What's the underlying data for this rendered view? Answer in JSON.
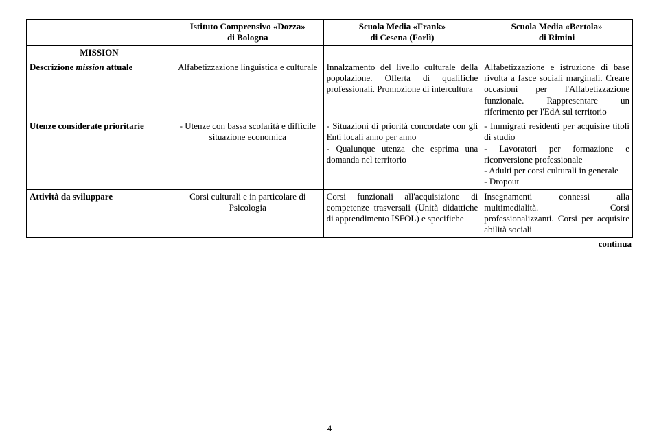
{
  "header": {
    "col1": "Istituto Comprensivo «Dozza»\ndi Bologna",
    "col2": "Scuola Media «Frank»\ndi Cesena (Forlì)",
    "col3": "Scuola Media «Bertola»\ndi Rimini"
  },
  "section_label": "MISSION",
  "rows": [
    {
      "label_html": "Descrizione <span class=\"italic\">mission</span> attuale",
      "c1": "Alfabetizzazione linguistica e culturale",
      "c2": "Innalzamento del livello culturale della popolazione. Offerta di qualifiche professionali. Promozione di intercultura",
      "c3": "Alfabetizzazione e istruzione di base rivolta a fasce sociali marginali. Creare occasioni per l'Alfabetizzazione funzionale. Rappresentare un riferimento per l'EdA sul territorio"
    },
    {
      "label": "Utenze considerate prioritarie",
      "c1": "- Utenze con bassa scolarità e difficile situazione economica",
      "c2": "- Situazioni di priorità concordate con gli Enti locali anno per anno\n- Qualunque utenza che esprima una domanda nel territorio",
      "c3": "- Immigrati residenti per acquisire titoli di studio\n- Lavoratori per formazione e riconversione professionale\n- Adulti per corsi culturali in generale\n- Dropout"
    },
    {
      "label": "Attività da sviluppare",
      "c1": "Corsi culturali e in particolare di Psicologia",
      "c2": "Corsi funzionali all'acquisizione di competenze trasversali (Unità didattiche di apprendimento ISFOL) e specifiche",
      "c3": "Insegnamenti connessi alla multimedialità. Corsi professionalizzanti. Corsi per acquisire abilità sociali"
    }
  ],
  "continua": "continua",
  "page_number": "4",
  "style": {
    "font_family": "Times New Roman",
    "font_size_pt": 10,
    "border_color": "#000000",
    "background": "#ffffff"
  }
}
